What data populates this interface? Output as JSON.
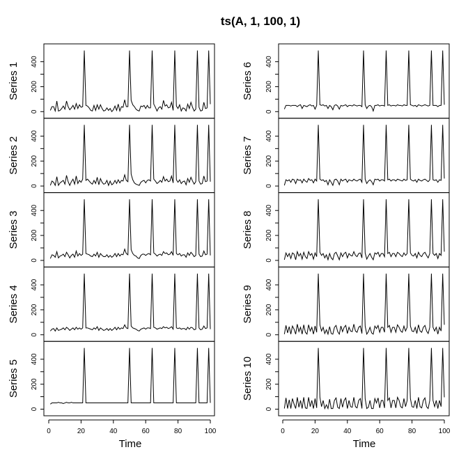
{
  "chart_data": {
    "type": "line",
    "title": "ts(A, 1, 100, 1)",
    "xlabel": "Time",
    "xlim": [
      1,
      100
    ],
    "ylim": [
      0,
      490
    ],
    "x_ticks": [
      "0",
      "20",
      "40",
      "60",
      "80",
      "100"
    ],
    "y_ticks": [
      "0",
      "200",
      "400"
    ],
    "x_tick_values": [
      0,
      20,
      40,
      60,
      80,
      100
    ],
    "y_tick_values": [
      0,
      200,
      400
    ],
    "x_start": 1,
    "spikes": {
      "times": [
        21,
        49,
        63,
        77,
        91,
        98
      ],
      "value": 490
    },
    "series": [
      {
        "name": "Series 1",
        "values": [
          10,
          40,
          40,
          5,
          85,
          5,
          10,
          25,
          45,
          20,
          85,
          40,
          15,
          30,
          50,
          20,
          65,
          25,
          55,
          35,
          40,
          490,
          50,
          45,
          30,
          10,
          5,
          50,
          10,
          55,
          20,
          55,
          25,
          5,
          10,
          30,
          10,
          25,
          0,
          15,
          45,
          10,
          60,
          5,
          40,
          35,
          95,
          40,
          40,
          490,
          90,
          55,
          40,
          20,
          10,
          5,
          45,
          40,
          50,
          25,
          50,
          30,
          30,
          490,
          60,
          35,
          5,
          30,
          40,
          20,
          90,
          45,
          55,
          30,
          35,
          75,
          10,
          490,
          45,
          25,
          55,
          5,
          30,
          25,
          5,
          60,
          25,
          75,
          35,
          5,
          20,
          490,
          35,
          5,
          10,
          75,
          25,
          30,
          490,
          60
        ]
      },
      {
        "name": "Series 2",
        "values": [
          5,
          40,
          30,
          5,
          75,
          5,
          25,
          35,
          45,
          15,
          85,
          35,
          5,
          35,
          55,
          15,
          80,
          20,
          45,
          30,
          55,
          490,
          45,
          55,
          40,
          25,
          15,
          45,
          20,
          70,
          10,
          60,
          30,
          15,
          20,
          45,
          5,
          40,
          10,
          20,
          45,
          20,
          50,
          25,
          45,
          40,
          90,
          45,
          35,
          490,
          95,
          50,
          25,
          15,
          10,
          5,
          30,
          40,
          45,
          25,
          45,
          50,
          40,
          490,
          55,
          40,
          20,
          30,
          45,
          30,
          75,
          40,
          55,
          35,
          40,
          80,
          25,
          490,
          50,
          30,
          50,
          20,
          35,
          40,
          10,
          60,
          30,
          70,
          40,
          15,
          35,
          490,
          40,
          15,
          20,
          80,
          35,
          40,
          490,
          35
        ]
      },
      {
        "name": "Series 3",
        "values": [
          15,
          45,
          40,
          25,
          70,
          20,
          35,
          40,
          50,
          30,
          65,
          45,
          20,
          40,
          50,
          25,
          75,
          35,
          55,
          40,
          50,
          490,
          55,
          50,
          45,
          35,
          30,
          50,
          35,
          65,
          25,
          55,
          40,
          30,
          30,
          45,
          25,
          40,
          25,
          35,
          55,
          30,
          55,
          35,
          50,
          45,
          90,
          55,
          45,
          490,
          85,
          55,
          40,
          35,
          20,
          15,
          40,
          50,
          50,
          40,
          50,
          55,
          45,
          490,
          60,
          50,
          35,
          45,
          50,
          40,
          70,
          55,
          60,
          45,
          50,
          70,
          40,
          490,
          55,
          45,
          55,
          35,
          45,
          45,
          25,
          60,
          40,
          65,
          50,
          30,
          40,
          490,
          50,
          30,
          35,
          75,
          45,
          50,
          490,
          40
        ]
      },
      {
        "name": "Series 4",
        "values": [
          30,
          45,
          50,
          30,
          55,
          35,
          40,
          45,
          55,
          40,
          60,
          50,
          35,
          45,
          55,
          40,
          60,
          45,
          55,
          45,
          55,
          490,
          55,
          55,
          50,
          45,
          40,
          55,
          45,
          65,
          35,
          55,
          45,
          35,
          40,
          50,
          35,
          50,
          35,
          45,
          60,
          40,
          60,
          45,
          55,
          50,
          80,
          55,
          50,
          490,
          70,
          55,
          50,
          45,
          35,
          30,
          45,
          50,
          55,
          45,
          55,
          55,
          50,
          490,
          60,
          55,
          45,
          50,
          55,
          50,
          65,
          55,
          60,
          50,
          55,
          65,
          45,
          490,
          55,
          50,
          55,
          45,
          50,
          50,
          40,
          60,
          45,
          60,
          55,
          40,
          45,
          490,
          55,
          40,
          45,
          70,
          50,
          55,
          490,
          45
        ]
      },
      {
        "name": "Series 5",
        "values": [
          40,
          50,
          50,
          50,
          50,
          55,
          50,
          50,
          45,
          50,
          55,
          50,
          50,
          55,
          50,
          50,
          50,
          50,
          50,
          50,
          50,
          490,
          50,
          50,
          50,
          50,
          50,
          50,
          50,
          50,
          50,
          50,
          50,
          50,
          50,
          50,
          50,
          50,
          50,
          50,
          50,
          50,
          50,
          50,
          50,
          50,
          50,
          50,
          50,
          490,
          50,
          50,
          50,
          50,
          50,
          50,
          50,
          50,
          50,
          50,
          50,
          50,
          50,
          490,
          50,
          50,
          50,
          50,
          50,
          50,
          50,
          50,
          50,
          50,
          50,
          50,
          50,
          490,
          50,
          50,
          50,
          50,
          50,
          50,
          50,
          50,
          50,
          50,
          50,
          50,
          50,
          490,
          50,
          50,
          50,
          50,
          50,
          50,
          490,
          50
        ]
      },
      {
        "name": "Series 6",
        "values": [
          20,
          50,
          50,
          50,
          45,
          50,
          50,
          50,
          40,
          50,
          55,
          25,
          50,
          45,
          40,
          50,
          55,
          45,
          50,
          20,
          50,
          490,
          55,
          50,
          55,
          45,
          50,
          25,
          50,
          40,
          15,
          50,
          55,
          45,
          20,
          50,
          45,
          50,
          55,
          40,
          50,
          50,
          45,
          55,
          50,
          45,
          50,
          50,
          40,
          490,
          55,
          25,
          45,
          50,
          40,
          5,
          50,
          50,
          55,
          45,
          50,
          50,
          45,
          490,
          50,
          55,
          45,
          50,
          50,
          45,
          55,
          50,
          50,
          45,
          55,
          50,
          50,
          490,
          55,
          50,
          45,
          50,
          40,
          55,
          50,
          45,
          50,
          55,
          50,
          45,
          50,
          490,
          50,
          50,
          50,
          40,
          50,
          50,
          490,
          55
        ]
      },
      {
        "name": "Series 7",
        "values": [
          5,
          50,
          40,
          50,
          30,
          55,
          50,
          20,
          55,
          45,
          50,
          25,
          55,
          40,
          30,
          60,
          45,
          50,
          25,
          55,
          40,
          490,
          55,
          45,
          50,
          35,
          45,
          10,
          50,
          30,
          5,
          50,
          55,
          40,
          10,
          55,
          40,
          50,
          55,
          30,
          50,
          45,
          40,
          55,
          45,
          40,
          50,
          55,
          30,
          490,
          55,
          20,
          40,
          50,
          35,
          10,
          55,
          50,
          55,
          40,
          50,
          50,
          40,
          490,
          50,
          55,
          40,
          50,
          50,
          40,
          55,
          50,
          45,
          40,
          55,
          45,
          50,
          490,
          55,
          45,
          40,
          50,
          30,
          55,
          45,
          40,
          50,
          55,
          45,
          35,
          50,
          490,
          50,
          45,
          50,
          30,
          50,
          45,
          490,
          60
        ]
      },
      {
        "name": "Series 8",
        "values": [
          5,
          60,
          30,
          55,
          15,
          60,
          50,
          5,
          70,
          35,
          55,
          10,
          65,
          30,
          15,
          70,
          40,
          55,
          10,
          60,
          30,
          490,
          65,
          40,
          55,
          20,
          45,
          5,
          55,
          20,
          5,
          55,
          65,
          35,
          5,
          60,
          30,
          55,
          65,
          20,
          55,
          40,
          35,
          70,
          40,
          30,
          55,
          60,
          20,
          490,
          60,
          10,
          35,
          55,
          25,
          5,
          60,
          50,
          65,
          30,
          55,
          55,
          30,
          490,
          55,
          65,
          30,
          55,
          55,
          30,
          65,
          55,
          40,
          30,
          60,
          40,
          55,
          490,
          60,
          40,
          35,
          55,
          20,
          65,
          40,
          30,
          55,
          65,
          40,
          20,
          55,
          490,
          55,
          40,
          55,
          15,
          55,
          40,
          490,
          70
        ]
      },
      {
        "name": "Series 9",
        "values": [
          5,
          75,
          15,
          65,
          5,
          70,
          45,
          5,
          85,
          25,
          60,
          5,
          80,
          20,
          5,
          80,
          30,
          60,
          5,
          70,
          20,
          490,
          80,
          30,
          60,
          10,
          40,
          5,
          65,
          10,
          5,
          60,
          75,
          25,
          5,
          70,
          25,
          60,
          75,
          10,
          60,
          30,
          25,
          85,
          30,
          20,
          60,
          70,
          10,
          490,
          70,
          5,
          25,
          60,
          15,
          5,
          70,
          50,
          75,
          20,
          60,
          60,
          20,
          490,
          60,
          75,
          20,
          60,
          60,
          20,
          80,
          60,
          30,
          20,
          70,
          30,
          60,
          490,
          70,
          30,
          25,
          60,
          10,
          80,
          30,
          20,
          60,
          75,
          30,
          10,
          60,
          490,
          60,
          30,
          60,
          5,
          60,
          30,
          490,
          80
        ]
      },
      {
        "name": "Series 10",
        "values": [
          5,
          90,
          5,
          75,
          5,
          85,
          40,
          5,
          95,
          15,
          70,
          5,
          95,
          10,
          5,
          95,
          20,
          70,
          5,
          85,
          10,
          490,
          95,
          20,
          70,
          5,
          35,
          5,
          80,
          5,
          5,
          70,
          90,
          15,
          5,
          85,
          15,
          70,
          90,
          5,
          70,
          20,
          15,
          95,
          20,
          10,
          70,
          85,
          5,
          490,
          85,
          5,
          15,
          70,
          5,
          5,
          85,
          50,
          90,
          10,
          70,
          70,
          10,
          490,
          70,
          90,
          10,
          70,
          70,
          10,
          95,
          70,
          20,
          10,
          85,
          20,
          70,
          490,
          85,
          20,
          15,
          70,
          5,
          95,
          20,
          10,
          70,
          90,
          20,
          5,
          70,
          490,
          70,
          20,
          70,
          5,
          70,
          20,
          490,
          95
        ]
      }
    ]
  }
}
